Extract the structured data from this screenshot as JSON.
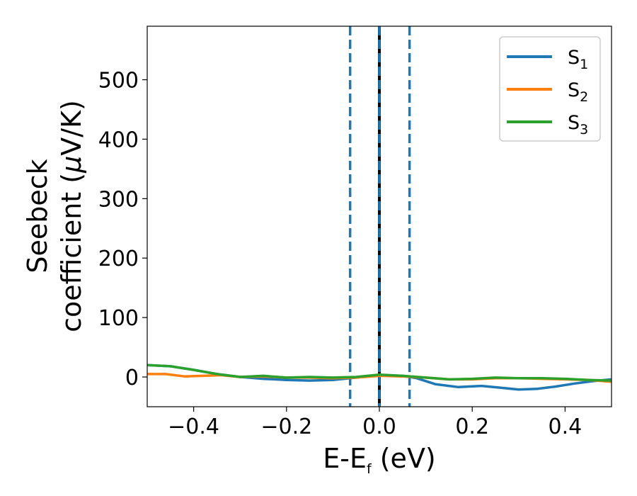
{
  "chart_data": {
    "type": "line",
    "xlabel": {
      "main": "E-E",
      "sub": "f",
      "rest": " (eV)"
    },
    "ylabel": {
      "line1": "Seebeck",
      "line2_prefix": "coefficient  (",
      "mu": "μ",
      "line2_suffix": "V/K)"
    },
    "xlim": [
      -0.5,
      0.5
    ],
    "ylim": [
      -50,
      590
    ],
    "xticks": [
      -0.4,
      -0.2,
      0.0,
      0.2,
      0.4
    ],
    "xtick_labels": [
      "−0.4",
      "−0.2",
      "0.0",
      "0.2",
      "0.4"
    ],
    "yticks": [
      0,
      100,
      200,
      300,
      400,
      500
    ],
    "ytick_labels": [
      "0",
      "100",
      "200",
      "300",
      "400",
      "500"
    ],
    "grid": false,
    "legend_position": "top-right",
    "vlines": [
      {
        "x": -0.063,
        "style": "dashed",
        "color": "#1f77b4"
      },
      {
        "x": 0.0,
        "style": "solid",
        "color": "#000000"
      },
      {
        "x": 0.0,
        "style": "dashed",
        "color": "#1f77b4"
      },
      {
        "x": 0.065,
        "style": "dashed",
        "color": "#1f77b4"
      }
    ],
    "series": [
      {
        "name": "S",
        "sub": "1",
        "color": "#1f77b4",
        "x": [
          -0.5,
          -0.45,
          -0.4,
          -0.35,
          -0.3,
          -0.25,
          -0.2,
          -0.15,
          -0.1,
          -0.05,
          0.0,
          0.05,
          0.08,
          0.12,
          0.17,
          0.22,
          0.26,
          0.3,
          0.34,
          0.38,
          0.42,
          0.46,
          0.5
        ],
        "y": [
          20,
          18,
          12,
          5,
          0,
          -3,
          -5,
          -6,
          -5,
          -1,
          3,
          2,
          -2,
          -12,
          -17,
          -15,
          -18,
          -21,
          -20,
          -16,
          -11,
          -7,
          -4
        ]
      },
      {
        "name": "S",
        "sub": "2",
        "color": "#ff7f0e",
        "x": [
          -0.5,
          -0.46,
          -0.42,
          -0.38,
          -0.34,
          -0.3,
          -0.25,
          -0.2,
          -0.15,
          -0.1,
          -0.05,
          0.0,
          0.05,
          0.1,
          0.15,
          0.2,
          0.25,
          0.3,
          0.35,
          0.4,
          0.45,
          0.5
        ],
        "y": [
          5,
          5,
          1,
          2,
          3,
          0,
          1,
          -1,
          -1,
          -2,
          -1,
          2,
          1,
          -1,
          -4,
          -4,
          -2,
          -2,
          -3,
          -4,
          -5,
          -8
        ]
      },
      {
        "name": "S",
        "sub": "3",
        "color": "#2ca02c",
        "x": [
          -0.5,
          -0.45,
          -0.4,
          -0.35,
          -0.3,
          -0.25,
          -0.2,
          -0.15,
          -0.1,
          -0.05,
          0.0,
          0.05,
          0.1,
          0.15,
          0.2,
          0.25,
          0.3,
          0.35,
          0.4,
          0.45,
          0.5
        ],
        "y": [
          20,
          18,
          12,
          5,
          0,
          2,
          -1,
          0,
          -1,
          0,
          4,
          2,
          -1,
          -4,
          -3,
          -1,
          -2,
          -2,
          -3,
          -5,
          -6
        ]
      }
    ]
  }
}
